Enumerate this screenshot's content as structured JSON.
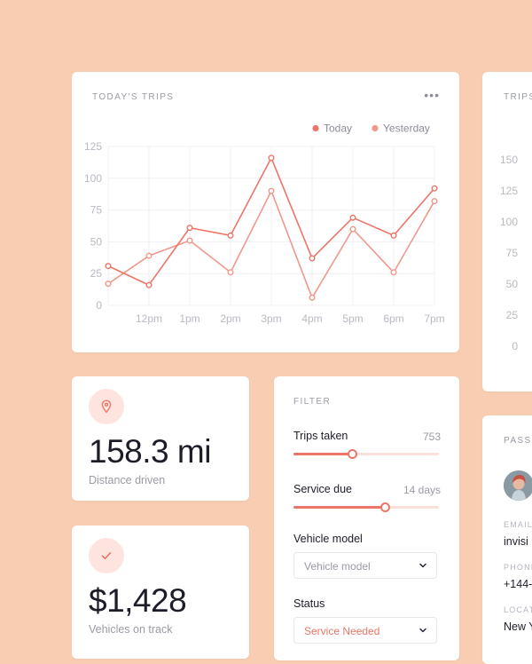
{
  "trips_card": {
    "title": "TODAY'S TRIPS",
    "menu_icon": "more-horizontal-icon",
    "menu_glyph": "•••"
  },
  "chart_data": {
    "type": "line",
    "title": "TODAY'S TRIPS",
    "categories": [
      "",
      "12pm",
      "1pm",
      "2pm",
      "3pm",
      "4pm",
      "5pm",
      "6pm",
      "7pm"
    ],
    "y_ticks": [
      0,
      25,
      50,
      75,
      100,
      125
    ],
    "ylim": [
      0,
      125
    ],
    "grid": true,
    "legend_position": "top-right",
    "series": [
      {
        "name": "Today",
        "color": "#ec7568",
        "values": [
          31,
          16,
          61,
          55,
          116,
          37,
          69,
          55,
          92
        ]
      },
      {
        "name": "Yesterday",
        "color": "#f0988c",
        "values": [
          17,
          39,
          51,
          26,
          90,
          6,
          60,
          26,
          82
        ]
      }
    ]
  },
  "trips_card_2": {
    "title": "TRIPS",
    "y_ticks": [
      "150",
      "125",
      "100",
      "75",
      "50",
      "25",
      "0"
    ]
  },
  "distance_card": {
    "icon": "location-pin-icon",
    "value": "158.3 mi",
    "caption": "Distance driven"
  },
  "vehicles_card": {
    "icon": "check-icon",
    "value": "$1,428",
    "caption": "Vehicles on track"
  },
  "filter_card": {
    "title": "FILTER",
    "trips_label": "Trips taken",
    "trips_value": "753",
    "trips_slider_level": 0.4,
    "service_label": "Service due",
    "service_value": "14 days",
    "service_slider_level": 0.63,
    "vehicle_model_label": "Vehicle model",
    "vehicle_model_selected": "Vehicle model",
    "status_label": "Status",
    "status_selected": "Service Needed",
    "status_color": "#ec7568"
  },
  "passenger_card": {
    "title": "PASSE",
    "email_label": "EMAIL",
    "email_value": "invisi",
    "phone_label": "PHONE",
    "phone_value": "+144-",
    "location_label": "LOCAT",
    "location_value": "New Y"
  }
}
